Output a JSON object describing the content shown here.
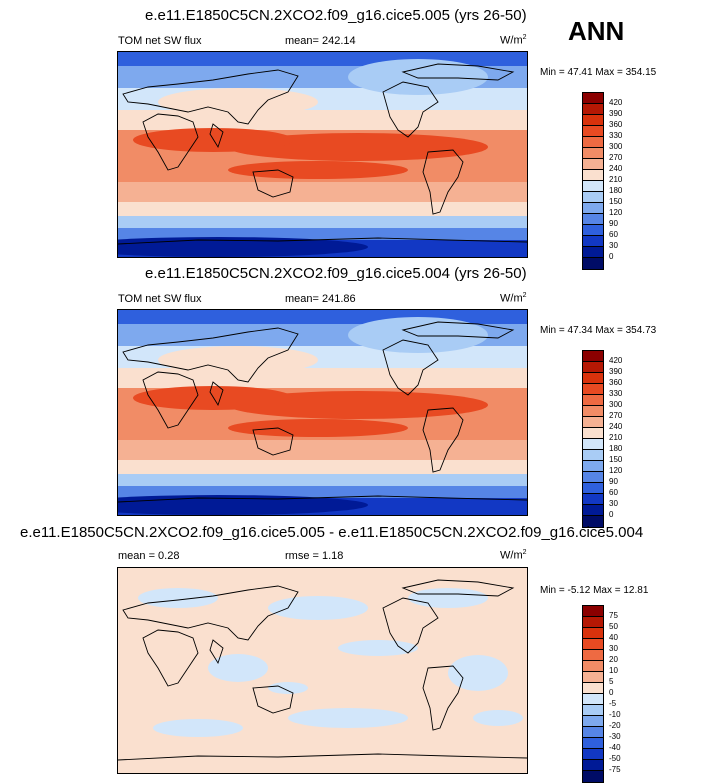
{
  "panels": [
    {
      "title": "e.e11.E1850C5CN.2XCO2.f09_g16.cice5.005 (yrs 26-50)",
      "left_label": "TOM net SW flux",
      "center_label": "mean= 242.14",
      "units": "W/m",
      "units_exp": "2",
      "minmax": "Min =  47.41 Max = 354.15",
      "levels": [
        "420",
        "390",
        "360",
        "330",
        "300",
        "270",
        "240",
        "210",
        "180",
        "150",
        "120",
        "90",
        "60",
        "30",
        "0"
      ]
    },
    {
      "title": "e.e11.E1850C5CN.2XCO2.f09_g16.cice5.004 (yrs 26-50)",
      "left_label": "TOM net SW flux",
      "center_label": "mean= 241.86",
      "units": "W/m",
      "units_exp": "2",
      "minmax": "Min =  47.34 Max = 354.73",
      "levels": [
        "420",
        "390",
        "360",
        "330",
        "300",
        "270",
        "240",
        "210",
        "180",
        "150",
        "120",
        "90",
        "60",
        "30",
        "0"
      ]
    },
    {
      "title": "e.e11.E1850C5CN.2XCO2.f09_g16.cice5.005 - e.e11.E1850C5CN.2XCO2.f09_g16.cice5.004",
      "left_label": "mean =   0.28",
      "center_label": "rmse =   1.18",
      "units": "W/m",
      "units_exp": "2",
      "minmax": "Min =  -5.12 Max =  12.81",
      "levels": [
        "75",
        "50",
        "40",
        "30",
        "20",
        "10",
        "5",
        "0",
        "-5",
        "-10",
        "-20",
        "-30",
        "-40",
        "-50",
        "-75"
      ]
    }
  ],
  "season": "ANN",
  "colors": {
    "colorbar": [
      "#8b0000",
      "#b51804",
      "#d9320c",
      "#e84a22",
      "#ee6a42",
      "#f18c66",
      "#f5b193",
      "#fae0cf",
      "#d2e6fa",
      "#a9ccf5",
      "#7ea9ee",
      "#5685e6",
      "#2f60dd",
      "#1238c4",
      "#001a96",
      "#000c66"
    ],
    "land_line": "#000000"
  }
}
